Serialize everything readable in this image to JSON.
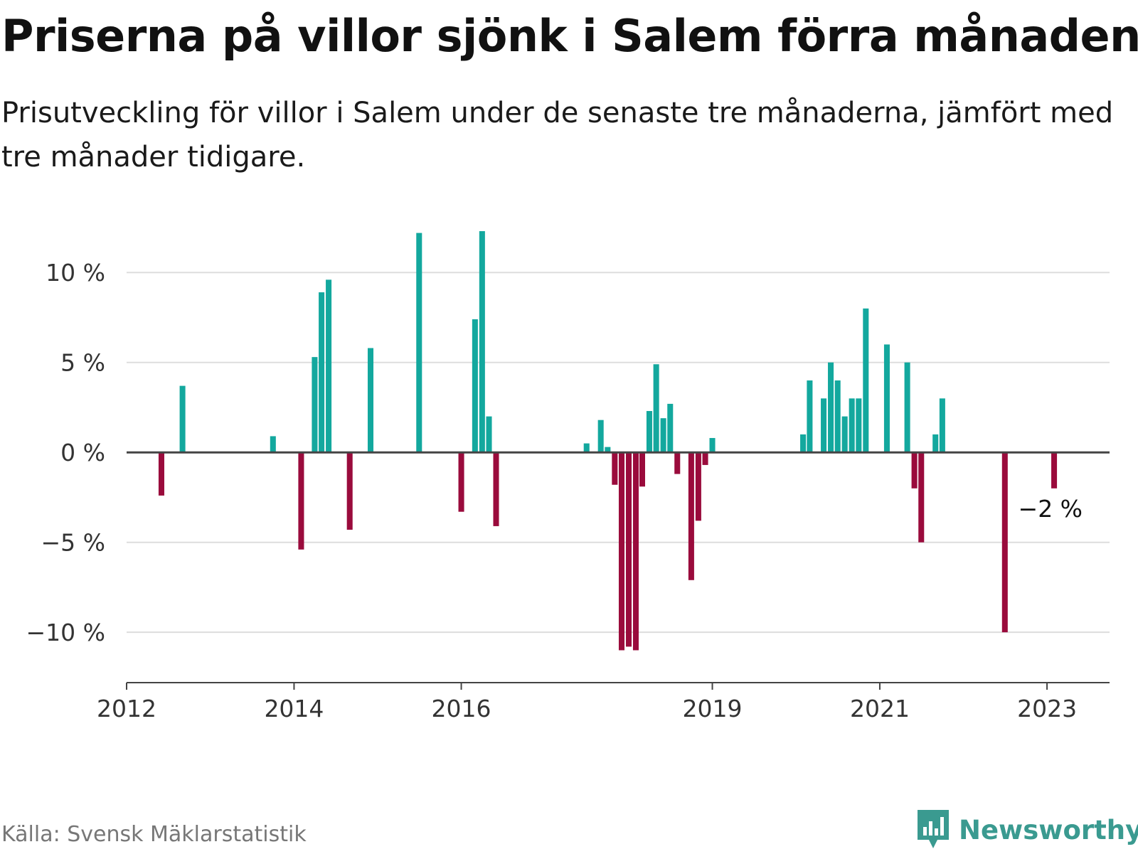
{
  "title": "Priserna på villor sjönk i Salem förra månaden",
  "subtitle": "Prisutveckling för villor i Salem under de senaste tre månaderna, jämfört med tre månader tidigare.",
  "source": "Källa: Svensk Mäklarstatistik",
  "brand": {
    "name": "Newsworthy",
    "icon": "newsworthy-logo-icon"
  },
  "colors": {
    "positive": "#13a89e",
    "negative": "#9a0b3c",
    "grid": "#dddddd",
    "axis": "#444444"
  },
  "chart_data": {
    "type": "bar",
    "x_type": "date",
    "ylim": [
      -12.8,
      12.5
    ],
    "xlim": [
      "2012-01-01",
      "2023-10-01"
    ],
    "y_ticks": [
      10,
      5,
      0,
      -5,
      -10
    ],
    "y_tick_labels": [
      "10 %",
      "5 %",
      "0 %",
      "−5 %",
      "−10 %"
    ],
    "x_ticks": [
      "2012-01-01",
      "2014-01-01",
      "2016-01-01",
      "2019-01-01",
      "2021-01-01",
      "2023-01-01"
    ],
    "x_tick_labels": [
      "2012",
      "2014",
      "2016",
      "2019",
      "2021",
      "2023"
    ],
    "grid": true,
    "annotation": {
      "text": "−2 %",
      "date": "2023-02-01",
      "value": -2
    },
    "series": [
      {
        "points": [
          {
            "date": "2012-06-01",
            "value": -2.4
          },
          {
            "date": "2012-09-01",
            "value": 3.7
          },
          {
            "date": "2013-10-01",
            "value": 0.9
          },
          {
            "date": "2014-02-01",
            "value": -5.4
          },
          {
            "date": "2014-04-01",
            "value": 5.3
          },
          {
            "date": "2014-05-01",
            "value": 8.9
          },
          {
            "date": "2014-06-01",
            "value": 9.6
          },
          {
            "date": "2014-09-01",
            "value": -4.3
          },
          {
            "date": "2014-12-01",
            "value": 5.8
          },
          {
            "date": "2015-07-01",
            "value": 12.2
          },
          {
            "date": "2016-01-01",
            "value": -3.3
          },
          {
            "date": "2016-03-01",
            "value": 7.4
          },
          {
            "date": "2016-04-01",
            "value": 12.3
          },
          {
            "date": "2016-05-01",
            "value": 2.0
          },
          {
            "date": "2016-06-01",
            "value": -4.1
          },
          {
            "date": "2017-07-01",
            "value": 0.5
          },
          {
            "date": "2017-09-01",
            "value": 1.8
          },
          {
            "date": "2017-10-01",
            "value": 0.3
          },
          {
            "date": "2017-11-01",
            "value": -1.8
          },
          {
            "date": "2017-12-01",
            "value": -11.0
          },
          {
            "date": "2018-01-01",
            "value": -10.8
          },
          {
            "date": "2018-02-01",
            "value": -11.0
          },
          {
            "date": "2018-03-01",
            "value": -1.9
          },
          {
            "date": "2018-04-01",
            "value": 2.3
          },
          {
            "date": "2018-05-01",
            "value": 4.9
          },
          {
            "date": "2018-06-01",
            "value": 1.9
          },
          {
            "date": "2018-07-01",
            "value": 2.7
          },
          {
            "date": "2018-08-01",
            "value": -1.2
          },
          {
            "date": "2018-10-01",
            "value": -7.1
          },
          {
            "date": "2018-11-01",
            "value": -3.8
          },
          {
            "date": "2018-12-01",
            "value": -0.7
          },
          {
            "date": "2019-01-01",
            "value": 0.8
          },
          {
            "date": "2020-02-01",
            "value": 1.0
          },
          {
            "date": "2020-03-01",
            "value": 4.0
          },
          {
            "date": "2020-05-01",
            "value": 3.0
          },
          {
            "date": "2020-06-01",
            "value": 5.0
          },
          {
            "date": "2020-07-01",
            "value": 4.0
          },
          {
            "date": "2020-08-01",
            "value": 2.0
          },
          {
            "date": "2020-09-01",
            "value": 3.0
          },
          {
            "date": "2020-10-01",
            "value": 3.0
          },
          {
            "date": "2020-11-01",
            "value": 8.0
          },
          {
            "date": "2021-02-01",
            "value": 6.0
          },
          {
            "date": "2021-05-01",
            "value": 5.0
          },
          {
            "date": "2021-06-01",
            "value": -2.0
          },
          {
            "date": "2021-07-01",
            "value": -5.0
          },
          {
            "date": "2021-09-01",
            "value": 1.0
          },
          {
            "date": "2021-10-01",
            "value": 3.0
          },
          {
            "date": "2022-07-01",
            "value": -10.0
          },
          {
            "date": "2023-02-01",
            "value": -2.0
          }
        ]
      }
    ]
  }
}
